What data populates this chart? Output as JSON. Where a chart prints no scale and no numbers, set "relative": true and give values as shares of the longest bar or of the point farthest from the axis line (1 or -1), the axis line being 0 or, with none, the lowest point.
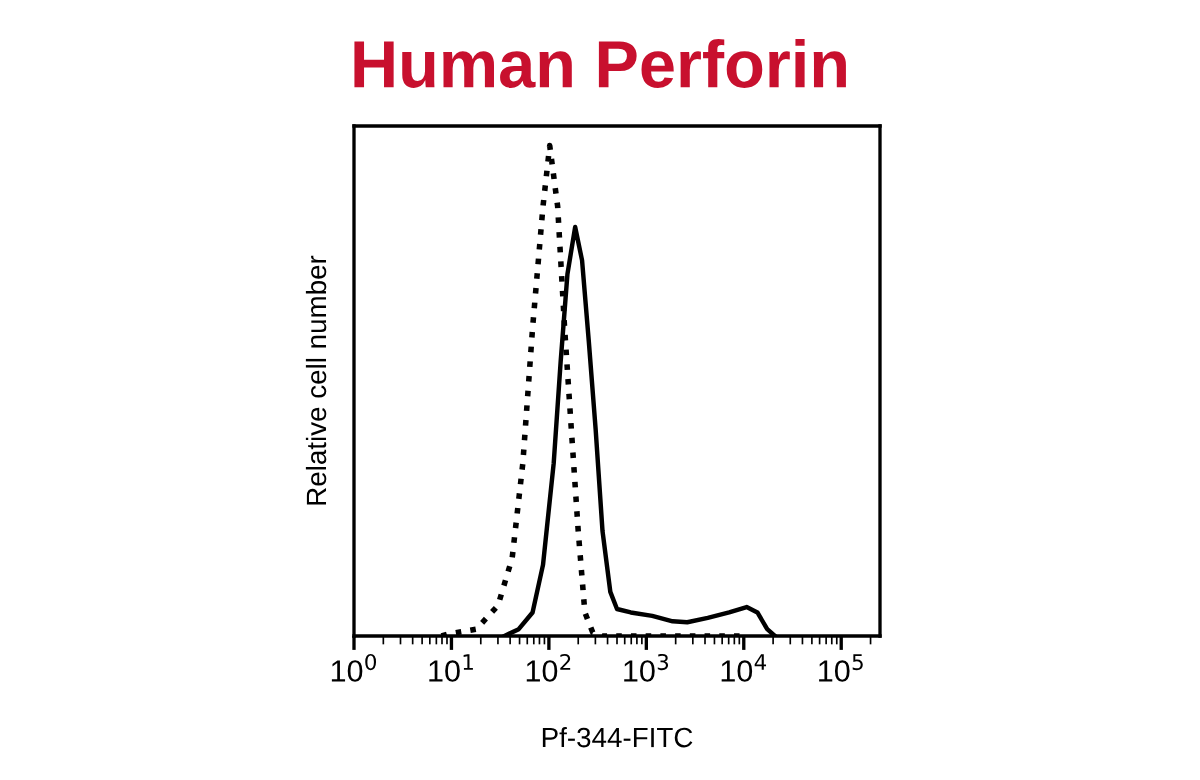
{
  "chart_data": {
    "type": "line",
    "title": "Human Perforin",
    "xlabel": "Pf-344-FITC",
    "ylabel": "Relative cell number",
    "relative": true,
    "log": "x",
    "xlim": [
      1,
      250000
    ],
    "xticks": [
      {
        "value": 1,
        "label": "10$^{0}$"
      },
      {
        "value": 10,
        "label": "10$^{1}$"
      },
      {
        "value": 100,
        "label": "10$^{2}$"
      },
      {
        "value": 1000,
        "label": "10$^{3}$"
      },
      {
        "value": 10000,
        "label": "10$^{4}$"
      },
      {
        "value": 100000,
        "label": "10$^{5}$"
      }
    ],
    "grid": false,
    "legend": false,
    "series": [
      {
        "color": "#000000",
        "line_style": "dotted",
        "x": [
          7.9,
          9.3,
          18,
          30,
          42,
          54,
          68,
          87,
          102,
          123,
          145,
          170,
          200,
          234,
          282,
          355,
          9800
        ],
        "values": [
          0,
          0.004,
          0.014,
          0.062,
          0.159,
          0.352,
          0.628,
          0.876,
          1.0,
          0.876,
          0.628,
          0.421,
          0.214,
          0.048,
          0.007,
          0,
          0
        ]
      },
      {
        "color": "#000000",
        "line_style": "solid",
        "x": [
          35,
          49,
          68,
          87,
          112,
          132,
          155,
          186,
          219,
          257,
          302,
          355,
          427,
          500,
          692,
          1150,
          1860,
          2630,
          4270,
          7080,
          10700,
          13800,
          17400,
          20900
        ],
        "values": [
          0,
          0.014,
          0.048,
          0.145,
          0.352,
          0.559,
          0.738,
          0.834,
          0.766,
          0.6,
          0.421,
          0.214,
          0.09,
          0.055,
          0.048,
          0.041,
          0.03,
          0.028,
          0.037,
          0.048,
          0.059,
          0.048,
          0.014,
          0
        ]
      }
    ]
  }
}
